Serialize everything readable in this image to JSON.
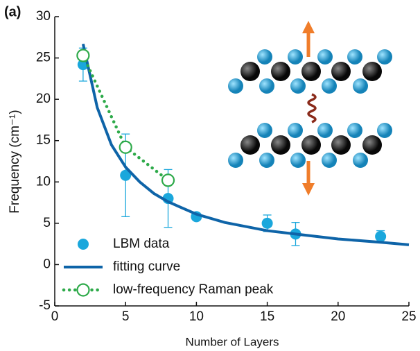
{
  "chart_data": {
    "type": "line",
    "panel_label": "(a)",
    "xlabel": "Number of Layers",
    "ylabel": "Frequency (cm⁻¹)",
    "xlim": [
      0,
      25
    ],
    "ylim": [
      -5,
      30
    ],
    "xticks": [
      0,
      5,
      10,
      15,
      20,
      25
    ],
    "yticks": [
      -5,
      0,
      5,
      10,
      15,
      20,
      25,
      30
    ],
    "legend": "lower left",
    "series": [
      {
        "name": "LBM data",
        "style": "scatter",
        "color": "#1aa7dc",
        "x": [
          2,
          5,
          8,
          10,
          15,
          17,
          23
        ],
        "values": [
          24.2,
          10.8,
          8.0,
          5.8,
          5.0,
          3.7,
          3.4
        ],
        "errors": [
          2.0,
          5.0,
          3.5,
          0.4,
          1.0,
          1.4,
          0.7
        ]
      },
      {
        "name": "fitting curve",
        "style": "line",
        "color": "#0e64a8",
        "x": [
          2,
          3,
          4,
          5,
          6,
          7,
          8,
          10,
          12,
          15,
          17,
          20,
          23,
          25
        ],
        "values": [
          26.7,
          19,
          14.5,
          11.8,
          10,
          8.6,
          7.6,
          6.1,
          5.1,
          4.1,
          3.7,
          3.1,
          2.7,
          2.4
        ]
      },
      {
        "name": "low-frequency Raman peak",
        "style": "dotted",
        "color": "#2eaa4a",
        "x": [
          2,
          5,
          8
        ],
        "values": [
          25.3,
          14.2,
          10.2
        ]
      }
    ]
  }
}
